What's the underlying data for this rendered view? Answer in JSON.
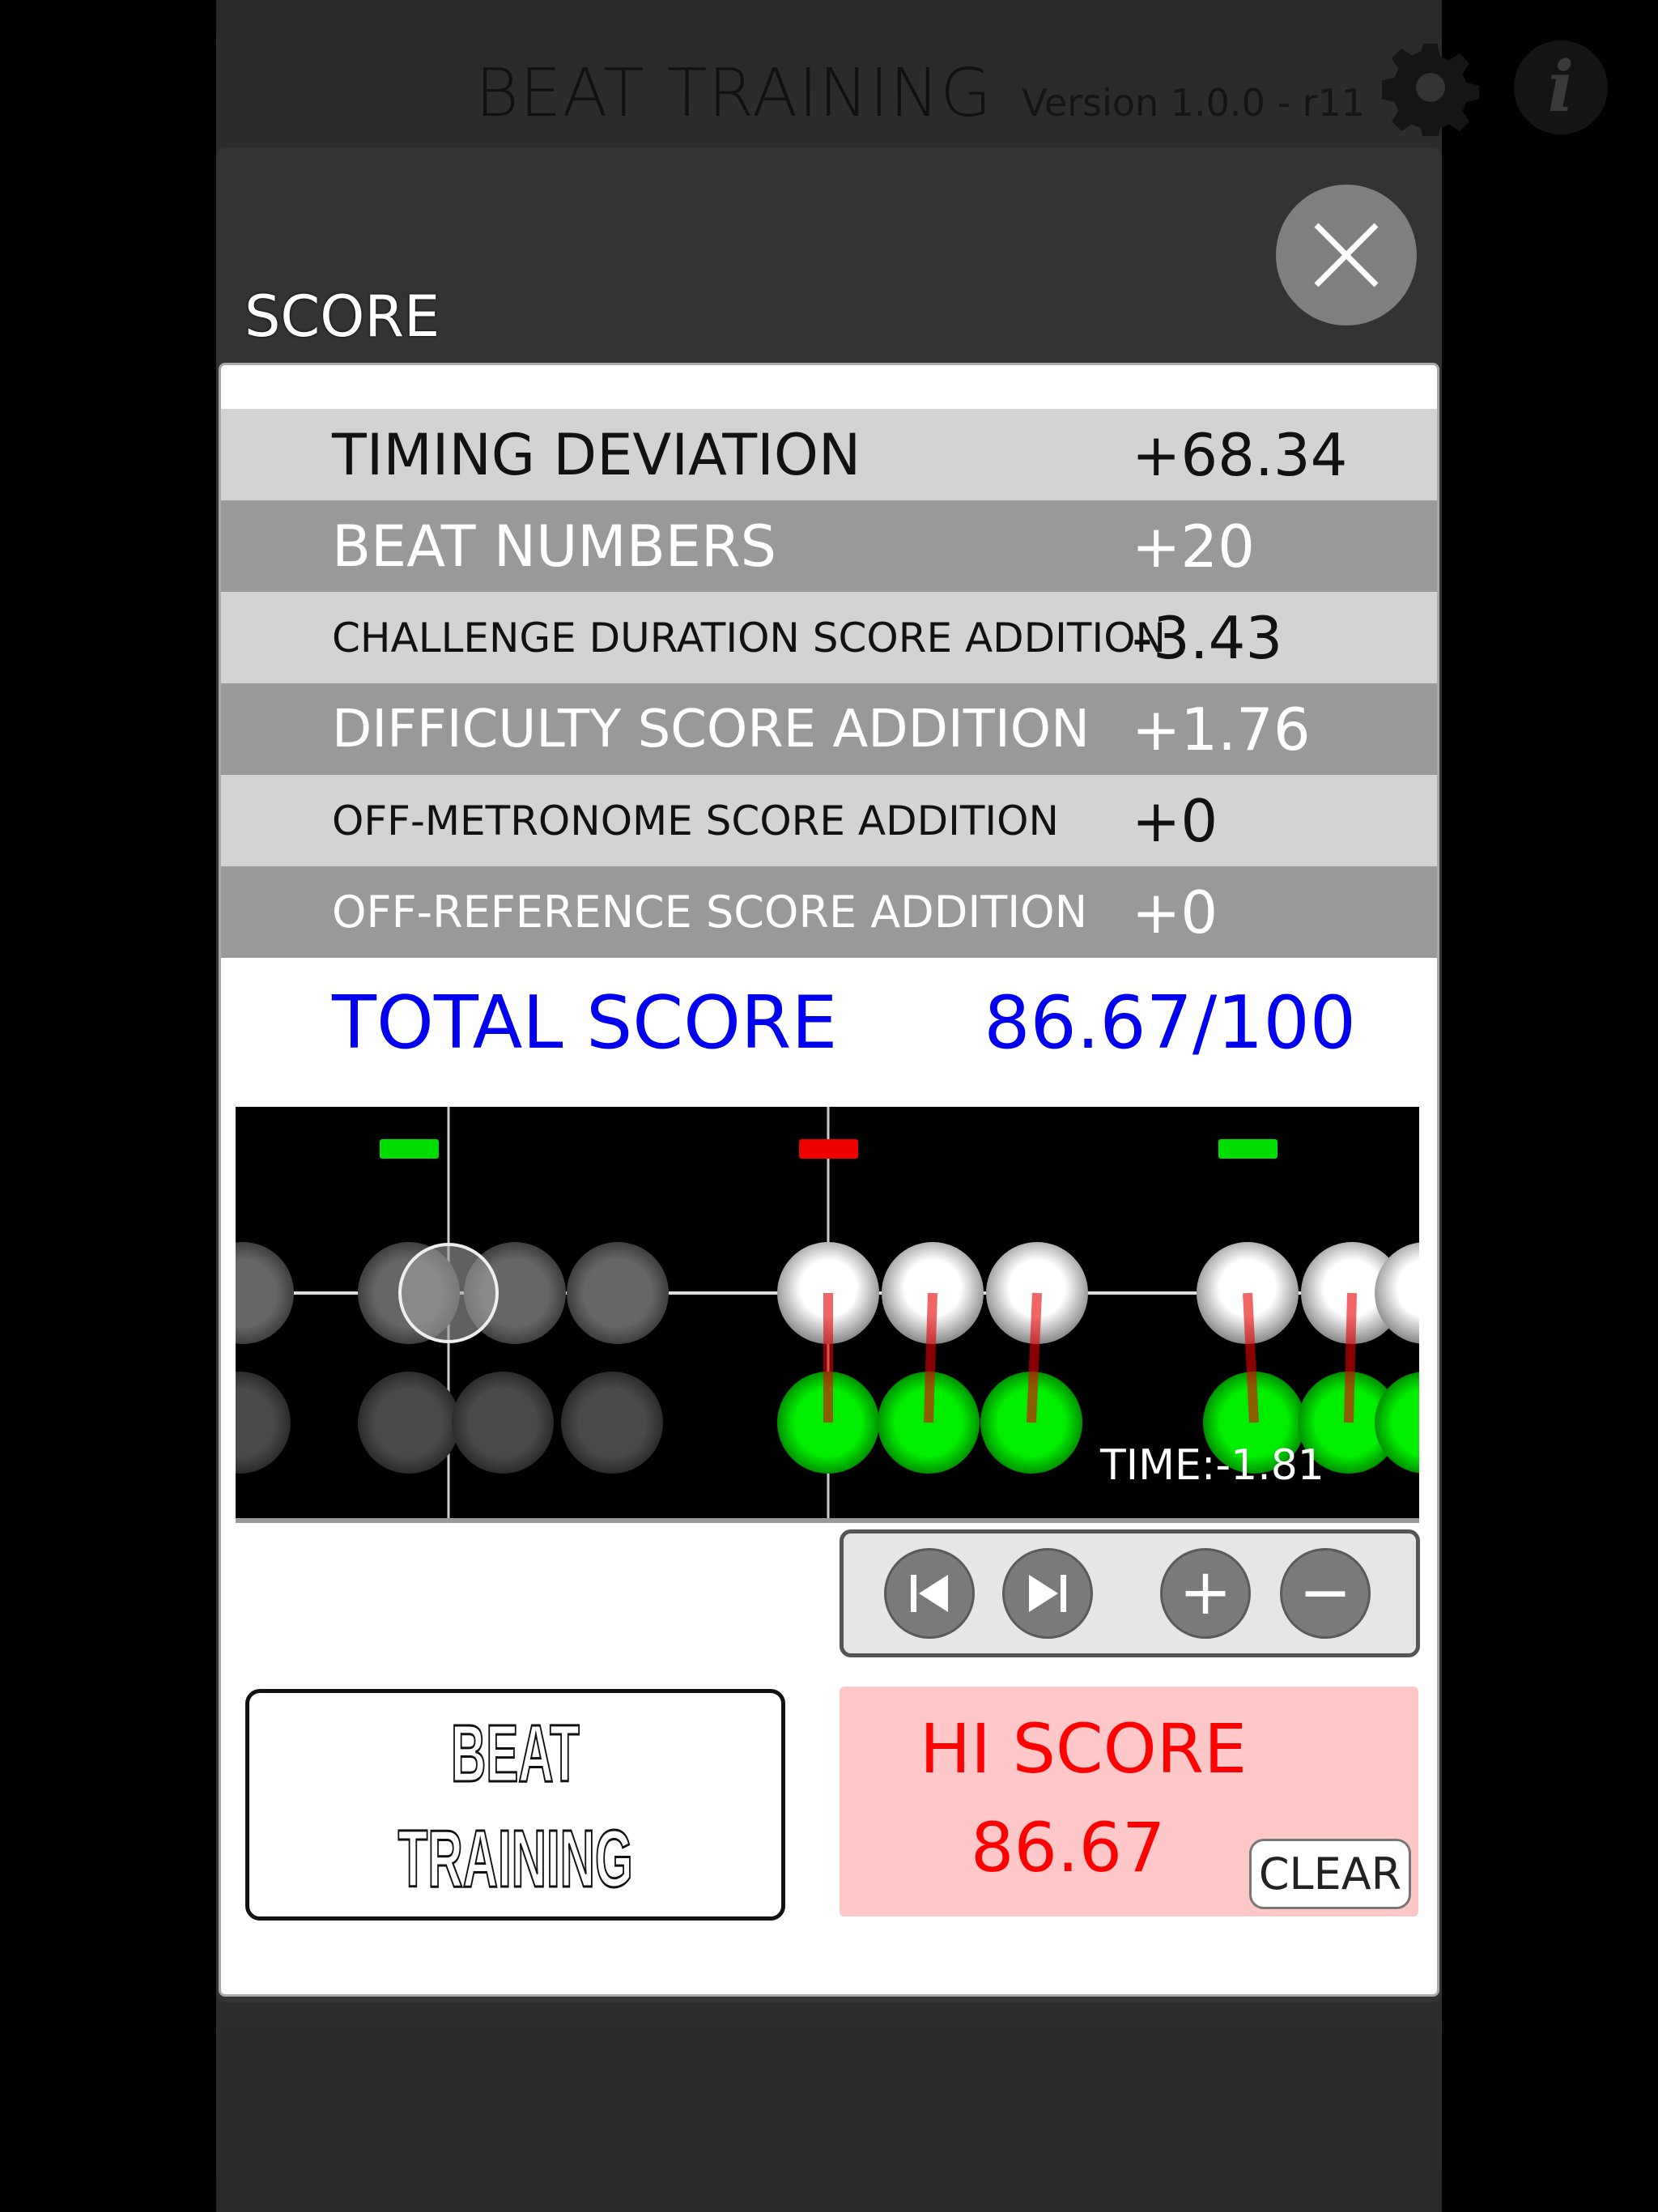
{
  "header": {
    "title": "BEAT TRAINING",
    "version": "Version 1.0.0 - r11",
    "settings_icon": "gear-icon",
    "info_icon": "info-icon"
  },
  "dialog": {
    "title": "SCORE",
    "close_icon": "close-icon",
    "rows": [
      {
        "label": "TIMING DEVIATION",
        "value": "+68.34"
      },
      {
        "label": "BEAT NUMBERS",
        "value": "+20"
      },
      {
        "label": "CHALLENGE DURATION SCORE ADDITION",
        "value": "-3.43"
      },
      {
        "label": "DIFFICULTY SCORE ADDITION",
        "value": "+1.76"
      },
      {
        "label": "OFF-METRONOME SCORE ADDITION",
        "value": "+0"
      },
      {
        "label": "OFF-REFERENCE SCORE ADDITION",
        "value": "+0"
      }
    ],
    "total_label": "TOTAL SCORE",
    "total_value": "86.67/100",
    "total_color": "#0000ee",
    "playback": {
      "time_text": "TIME:-1.81",
      "marker_colors": [
        "#00dd00",
        "#ee0000",
        "#00dd00"
      ]
    },
    "controls": {
      "prev": "skip-back-icon",
      "next": "skip-forward-icon",
      "zoom_in": "+",
      "zoom_out": "−"
    },
    "beat_training_button": [
      "BEAT",
      "TRAINING"
    ],
    "hi_score": {
      "label": "HI SCORE",
      "value": "86.67",
      "clear": "CLEAR"
    }
  }
}
